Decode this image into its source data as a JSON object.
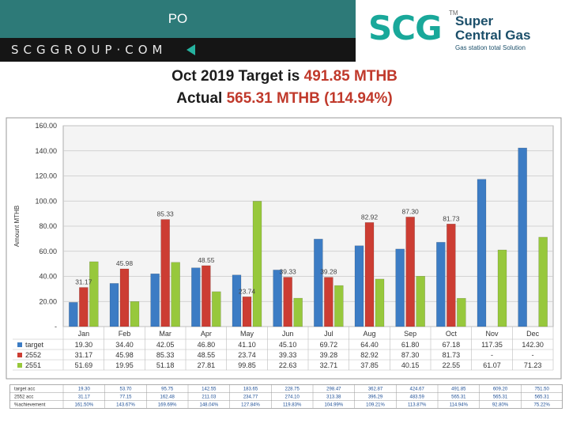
{
  "header": {
    "title": "PO"
  },
  "brand": {
    "text": "SCGGROUP·COM"
  },
  "logo": {
    "mark": "SCG",
    "tm": "TM",
    "name_line1": "Super",
    "name_line2": "Central Gas",
    "tagline": "Gas station total Solution"
  },
  "headline": {
    "line1_label": "Oct 2019 Target is ",
    "line1_value": "491.85 MTHB",
    "line2_label": "Actual ",
    "line2_value": "565.31 MTHB (114.94%)"
  },
  "colors": {
    "target": "#3c7cc4",
    "y2552": "#cc3d33",
    "y2551": "#97c83c",
    "teal_bar": "#2d7a78"
  },
  "chart_data": {
    "type": "bar",
    "ylabel": "Amount MTHB",
    "ylim": [
      0,
      160
    ],
    "yticks": [
      "-",
      "20.00",
      "40.00",
      "60.00",
      "80.00",
      "100.00",
      "120.00",
      "140.00",
      "160.00"
    ],
    "grid": true,
    "categories": [
      "Jan",
      "Feb",
      "Mar",
      "Apr",
      "May",
      "Jun",
      "Jul",
      "Aug",
      "Sep",
      "Oct",
      "Nov",
      "Dec"
    ],
    "series": [
      {
        "name": "target",
        "values": [
          19.3,
          34.4,
          42.05,
          46.8,
          41.1,
          45.1,
          69.72,
          64.4,
          61.8,
          67.18,
          117.35,
          142.3
        ],
        "display": [
          "19.30",
          "34.40",
          "42.05",
          "46.80",
          "41.10",
          "45.10",
          "69.72",
          "64.40",
          "61.80",
          "67.18",
          "117.35",
          "142.30"
        ]
      },
      {
        "name": "2552",
        "values": [
          31.17,
          45.98,
          85.33,
          48.55,
          23.74,
          39.33,
          39.28,
          82.92,
          87.3,
          81.73,
          null,
          null
        ],
        "display": [
          "31.17",
          "45.98",
          "85.33",
          "48.55",
          "23.74",
          "39.33",
          "39.28",
          "82.92",
          "87.30",
          "81.73",
          "-",
          "-"
        ]
      },
      {
        "name": "2551",
        "values": [
          51.69,
          19.95,
          51.18,
          27.81,
          99.85,
          22.63,
          32.71,
          37.85,
          40.15,
          22.55,
          61.07,
          71.23
        ],
        "display": [
          "51.69",
          "19.95",
          "51.18",
          "27.81",
          "99.85",
          "22.63",
          "32.71",
          "37.85",
          "40.15",
          "22.55",
          "61.07",
          "71.23"
        ]
      }
    ],
    "data_labels": [
      {
        "series": 1,
        "index": 0,
        "text": "31.17"
      },
      {
        "series": 1,
        "index": 1,
        "text": "45.98"
      },
      {
        "series": 1,
        "index": 2,
        "text": "85.33"
      },
      {
        "series": 1,
        "index": 3,
        "text": "48.55"
      },
      {
        "series": 1,
        "index": 4,
        "text": "23.74"
      },
      {
        "series": 1,
        "index": 5,
        "text": "39.33"
      },
      {
        "series": 1,
        "index": 6,
        "text": "39.28"
      },
      {
        "series": 1,
        "index": 7,
        "text": "82.92"
      },
      {
        "series": 1,
        "index": 8,
        "text": "87.30"
      },
      {
        "series": 1,
        "index": 9,
        "text": "81.73"
      }
    ],
    "legend_placement": "table-left"
  },
  "bottom_table": {
    "rows": [
      {
        "label": "target acc",
        "values": [
          "19.30",
          "53.70",
          "95.75",
          "142.55",
          "183.65",
          "228.75",
          "298.47",
          "362.87",
          "424.67",
          "491.85",
          "609.20",
          "751.50"
        ]
      },
      {
        "label": "2552 acc",
        "values": [
          "31.17",
          "77.15",
          "162.48",
          "211.03",
          "234.77",
          "274.10",
          "313.38",
          "396.29",
          "483.59",
          "565.31",
          "565.31",
          "565.31"
        ]
      },
      {
        "label": "%achievement",
        "values": [
          "161.50%",
          "143.67%",
          "169.69%",
          "148.04%",
          "127.84%",
          "119.83%",
          "104.99%",
          "109.21%",
          "113.87%",
          "114.94%",
          "92.80%",
          "75.22%"
        ]
      }
    ]
  }
}
